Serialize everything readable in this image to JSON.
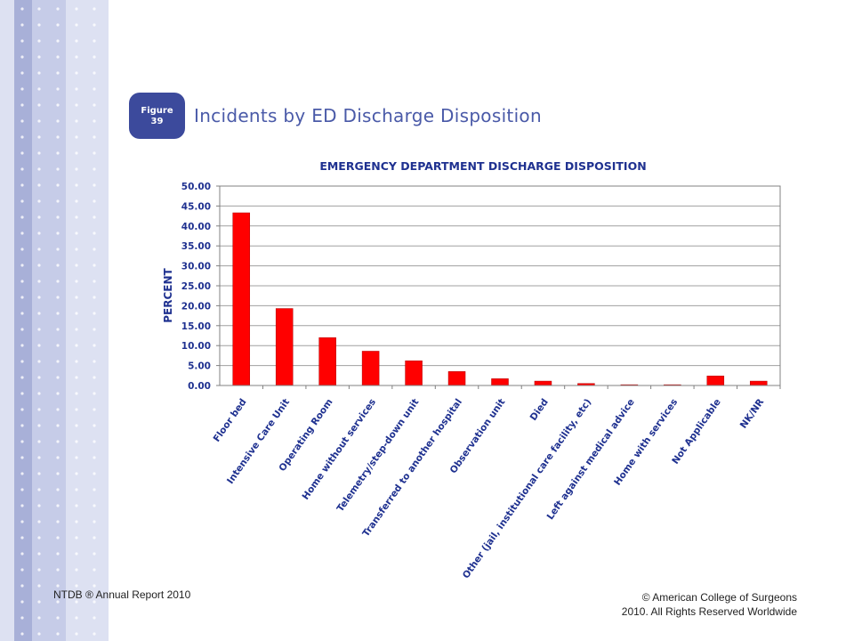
{
  "slide": {
    "figure_label": "Figure",
    "figure_number": "39",
    "title": "Incidents by ED Discharge Disposition"
  },
  "footer": {
    "left": "NTDB ® Annual Report 2010",
    "right": "© American College of Surgeons 2010.  All Rights Reserved Worldwide"
  },
  "colors": {
    "bar": "#ff0000",
    "axis_text": "#1f3190",
    "badge": "#3c4a9c",
    "title_text": "#4a5aa8",
    "stripe_dark": "#a8b0d8",
    "stripe_light": "#dde1f2"
  },
  "chart_data": {
    "type": "bar",
    "title": "EMERGENCY DEPARTMENT DISCHARGE DISPOSITION",
    "xlabel": "",
    "ylabel": "PERCENT",
    "ylim": [
      0,
      50
    ],
    "yticks": [
      "0.00",
      "5.00",
      "10.00",
      "15.00",
      "20.00",
      "25.00",
      "30.00",
      "35.00",
      "40.00",
      "45.00",
      "50.00"
    ],
    "grid": true,
    "categories": [
      "Floor bed",
      "Intensive Care Unit",
      "Operating Room",
      "Home without services",
      "Telemetry/step-down unit",
      "Transferred to another hospital",
      "Observation unit",
      "Died",
      "Other (jail, institutional care facility, etc)",
      "Left against medical advice",
      "Home with services",
      "Not Applicable",
      "NK/NR"
    ],
    "values": [
      43.3,
      19.3,
      12.0,
      8.6,
      6.2,
      3.5,
      1.7,
      1.1,
      0.5,
      0.2,
      0.2,
      2.4,
      1.1
    ]
  }
}
